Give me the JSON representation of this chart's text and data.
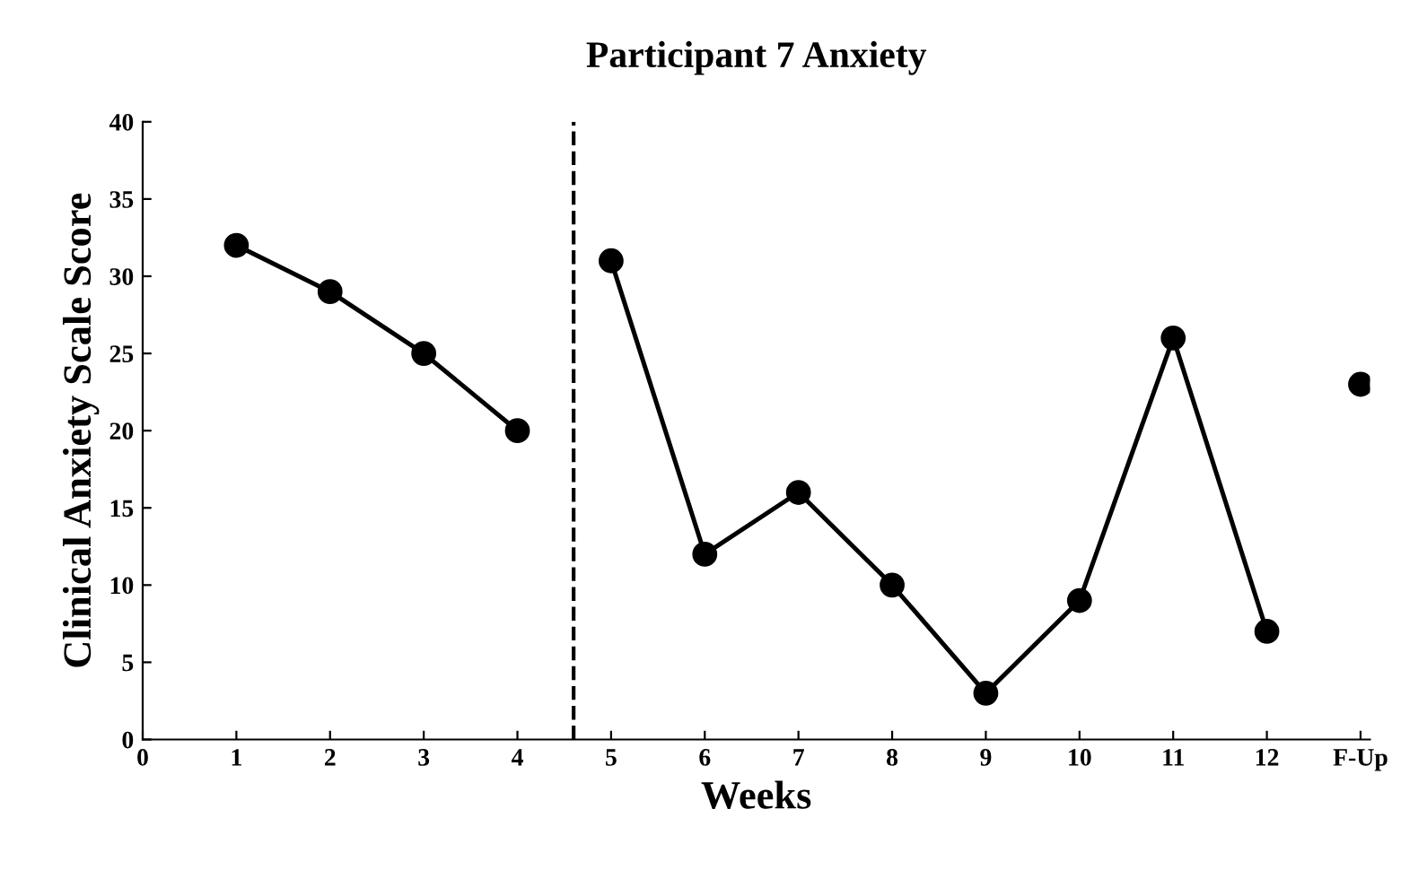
{
  "chart_data": {
    "type": "line",
    "title": "Participant 7 Anxiety",
    "xlabel": "Weeks",
    "ylabel": "Clinical Anxiety Scale Score",
    "series": [
      {
        "color": "#000000",
        "x": [
          1,
          2,
          3,
          4
        ],
        "values": [
          32,
          29,
          25,
          20
        ]
      },
      {
        "color": "#000000",
        "x": [
          5,
          6,
          7,
          8,
          9,
          10,
          11,
          12
        ],
        "values": [
          31,
          12,
          16,
          10,
          3,
          9,
          26,
          7
        ]
      },
      {
        "color": "#000000",
        "type": "scatter",
        "x": [
          13
        ],
        "values": [
          23
        ]
      }
    ],
    "xlim": [
      0,
      13.1
    ],
    "xticks": [
      0,
      1,
      2,
      3,
      4,
      5,
      6,
      7,
      8,
      9,
      10,
      11,
      12,
      {
        "value": 13,
        "label": "F-Up"
      }
    ],
    "ylim": [
      0,
      40
    ],
    "yticks": [
      0,
      5,
      10,
      15,
      20,
      25,
      30,
      35,
      40
    ],
    "ref_lines": [
      {
        "axis": "x",
        "value": 4.6,
        "color": "#000000",
        "line_style": "dashed"
      }
    ],
    "marker": "circle",
    "line_style": "solid",
    "grid": false,
    "legend": false
  }
}
